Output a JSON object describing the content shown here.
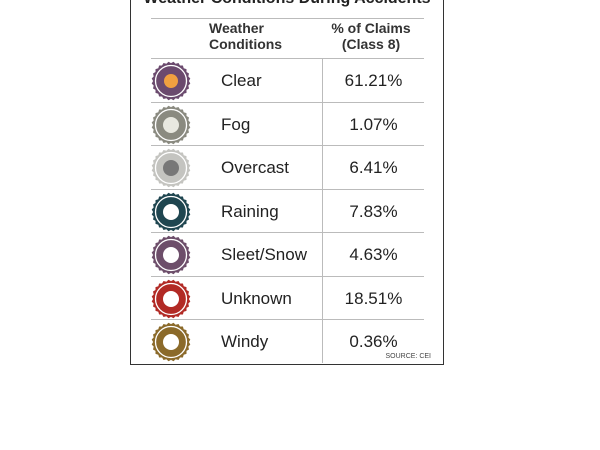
{
  "header": {
    "title": "Weather Conditions During Accidents"
  },
  "table": {
    "columns": [
      "Weather Conditions",
      "% of Claims (Class 8)"
    ],
    "rows": [
      [
        "Clear",
        "61.21%"
      ],
      [
        "Fog",
        "1.07%"
      ],
      [
        "Overcast",
        "6.41%"
      ],
      [
        "Raining",
        "7.83%"
      ],
      [
        "Sleet/Snow",
        "4.63%"
      ],
      [
        "Unknown",
        "18.51%"
      ],
      [
        "Windy",
        "0.36%"
      ]
    ]
  },
  "source": "SOURCE: CEI"
}
